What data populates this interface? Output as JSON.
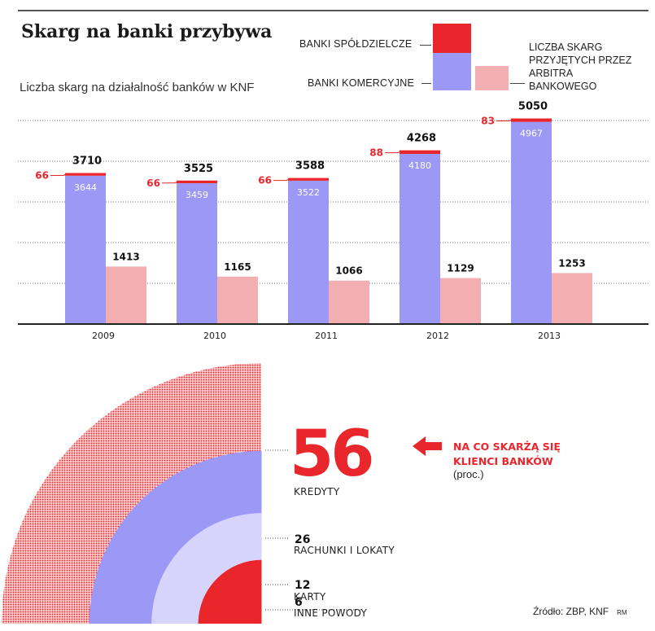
{
  "header": {
    "title": "Skarg na banki przybywa",
    "subtitle": "Liczba skarg na działalność banków w KNF"
  },
  "legend": {
    "cooperative": "BANKI SPÓŁDZIELCZE",
    "commercial": "BANKI KOMERCYJNE",
    "arbiter": "LICZBA SKARG PRZYJĘTYCH PRZEZ ARBITRA BANKOWEGO"
  },
  "colors": {
    "commercial": "#9b99f5",
    "cooperative": "#e8262b",
    "arbiter": "#f2aeb0",
    "accent": "#e8262b",
    "light_violet": "#d6d4fb"
  },
  "chart_data": [
    {
      "type": "bar",
      "title": "Liczba skarg na działalność banków w KNF",
      "categories": [
        "2009",
        "2010",
        "2011",
        "2012",
        "2013"
      ],
      "series": [
        {
          "name": "BANKI KOMERCYJNE",
          "values": [
            3644,
            3459,
            3522,
            4180,
            4967
          ],
          "stack": "knf"
        },
        {
          "name": "BANKI SPÓŁDZIELCZE",
          "values": [
            66,
            66,
            66,
            88,
            83
          ],
          "stack": "knf"
        },
        {
          "name": "LICZBA SKARG PRZYJĘTYCH PRZEZ ARBITRA BANKOWEGO",
          "values": [
            1413,
            1165,
            1066,
            1129,
            1253
          ]
        }
      ],
      "totals": [
        3710,
        3525,
        3588,
        4268,
        5050
      ],
      "ylim": [
        0,
        5500
      ],
      "grid": true
    },
    {
      "type": "pie",
      "title": "NA CO SKARŻĄ SIĘ KLIENCI BANKÓW",
      "unit": "(proc.)",
      "slices": [
        {
          "label": "KREDYTY",
          "value": 56
        },
        {
          "label": "RACHUNKI I LOKATY",
          "value": 26
        },
        {
          "label": "KARTY",
          "value": 12
        },
        {
          "label": "INNE POWODY",
          "value": 6
        }
      ]
    }
  ],
  "breakdown": {
    "headline_value": "56",
    "question": "NA CO SKARŻĄ SIĘ KLIENCI BANKÓW",
    "unit": "(proc.)",
    "items": [
      {
        "value": "56",
        "label": "KREDYTY"
      },
      {
        "value": "26",
        "label": "RACHUNKI I LOKATY"
      },
      {
        "value": "12",
        "label": "KARTY"
      },
      {
        "value": "6",
        "label": "INNE POWODY"
      }
    ]
  },
  "source": {
    "text": "Źródło: ZBP, KNF",
    "author": "RM"
  }
}
